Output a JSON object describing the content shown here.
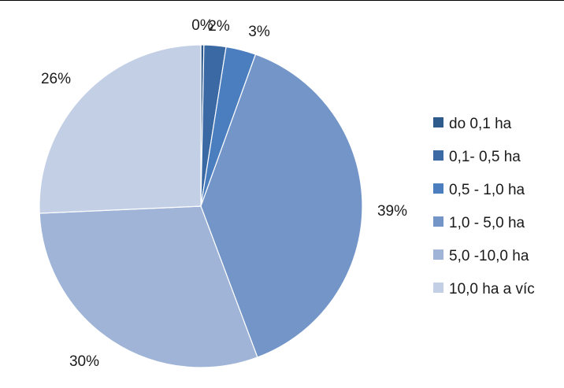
{
  "chart_data": {
    "type": "pie",
    "title": "",
    "categories": [
      "do 0,1 ha",
      "0,1- 0,5 ha",
      "0,5 - 1,0 ha",
      "1,0 - 5,0 ha",
      "5,0 -10,0 ha",
      "10,0 ha a víc"
    ],
    "values": [
      0.3,
      2.2,
      3.0,
      38.8,
      30.0,
      25.7
    ],
    "labels": [
      "0%",
      "2%",
      "3%",
      "39%",
      "30%",
      "26%"
    ],
    "colors": [
      "#2e5a8c",
      "#3b69a3",
      "#4a7ebf",
      "#7395c8",
      "#9fb4d6",
      "#c2cfe5"
    ],
    "start_angle": "top, clockwise",
    "legend_position": "right"
  }
}
